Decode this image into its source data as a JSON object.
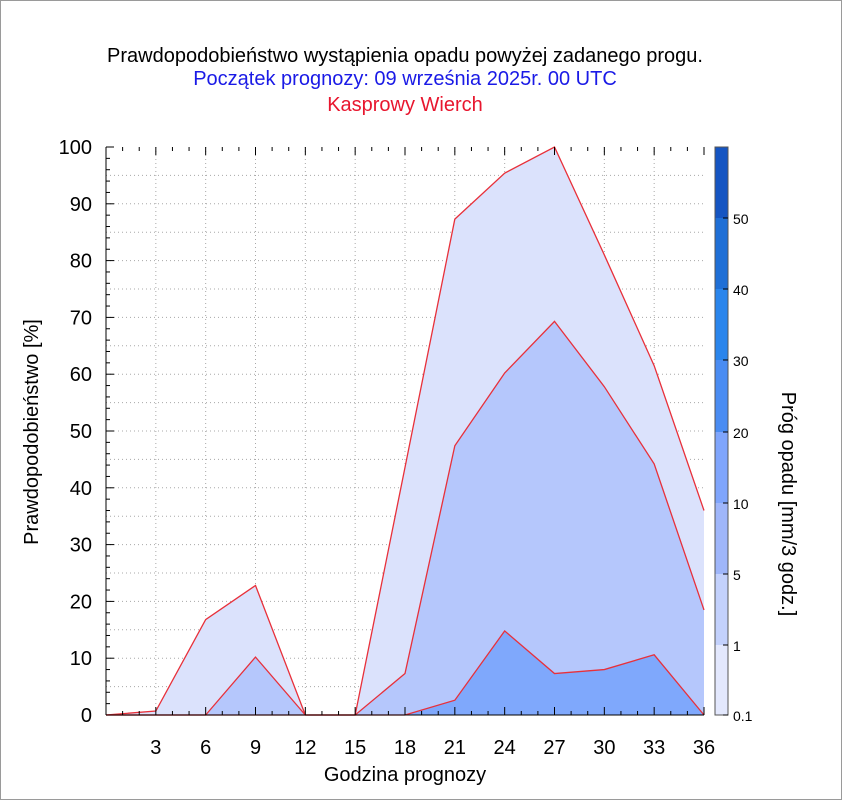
{
  "chart_data": {
    "type": "area",
    "title": "Prawdopodobieństwo wystąpienia opadu powyżej zadanego progu.",
    "subtitle": "Początek prognozy: 09 września 2025r. 00 UTC",
    "location": "Kasprowy Wierch",
    "xlabel": "Godzina prognozy",
    "ylabel": "Prawdopodobieństwo [%]",
    "colorbar_label": "Próg opadu [mm/3 godz.]",
    "xlim": [
      0,
      36
    ],
    "ylim": [
      0,
      100
    ],
    "xticks": [
      "3",
      "6",
      "9",
      "12",
      "15",
      "18",
      "21",
      "24",
      "27",
      "30",
      "33",
      "36"
    ],
    "yticks": [
      "0",
      "10",
      "20",
      "30",
      "40",
      "50",
      "60",
      "70",
      "80",
      "90",
      "100"
    ],
    "colorbar_ticks": [
      "0.1",
      "1",
      "5",
      "10",
      "20",
      "30",
      "40",
      "50"
    ],
    "colorbar_colors": [
      "#e3e8fd",
      "#c3d1fc",
      "#9fb6fa",
      "#7fa5fc",
      "#4a8cf2",
      "#2a85ec",
      "#1f6fd6",
      "#1555c2",
      "#0b3fa4"
    ],
    "grid": true,
    "series": [
      {
        "threshold": "0.1",
        "color": "#dbe2fc",
        "x": [
          0,
          3,
          6,
          9,
          12,
          15,
          18,
          21,
          24,
          27,
          30,
          33,
          36
        ],
        "values": [
          0,
          0.7,
          16.8,
          22.8,
          0,
          0,
          43.6,
          87.3,
          95.4,
          100,
          81,
          61.5,
          36
        ]
      },
      {
        "threshold": "1",
        "color": "#b5c7fc",
        "x": [
          0,
          3,
          6,
          9,
          12,
          15,
          18,
          21,
          24,
          27,
          30,
          33,
          36
        ],
        "values": [
          0,
          0,
          0,
          10.2,
          0,
          0,
          7.3,
          47.4,
          60.2,
          69.3,
          57.8,
          44.2,
          18.5
        ]
      },
      {
        "threshold": "5",
        "color": "#7fa8fc",
        "x": [
          0,
          3,
          6,
          9,
          12,
          15,
          18,
          21,
          24,
          27,
          30,
          33,
          36
        ],
        "values": [
          0,
          0,
          0,
          0,
          0,
          0,
          0,
          2.6,
          14.8,
          7.3,
          8,
          10.6,
          0
        ]
      }
    ]
  }
}
